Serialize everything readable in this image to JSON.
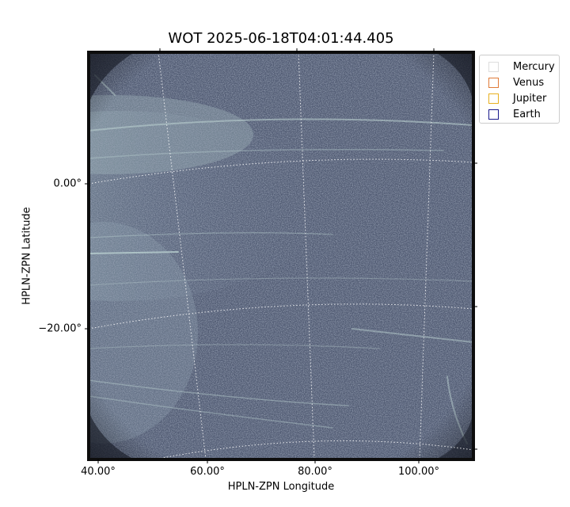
{
  "title": "WOT 2025-06-18T04:01:44.405",
  "xlabel": "HPLN-ZPN Longitude",
  "ylabel": "HPLN-ZPN Latitude",
  "x_ticks": [
    "40.00°",
    "60.00°",
    "80.00°",
    "100.00°"
  ],
  "y_ticks": [
    "0.00°",
    "−20.00°"
  ],
  "legend": [
    {
      "label": "Mercury",
      "color": "#dddddd"
    },
    {
      "label": "Venus",
      "color": "#e07b39"
    },
    {
      "label": "Jupiter",
      "color": "#e8b020"
    },
    {
      "label": "Earth",
      "color": "#1a1a8c"
    }
  ],
  "image": {
    "description_colormap": "bone",
    "palette": {
      "dark": "#2d3348",
      "mid": "#5c6780",
      "light": "#a9c3c3",
      "frame": "#0d0d0d"
    }
  }
}
